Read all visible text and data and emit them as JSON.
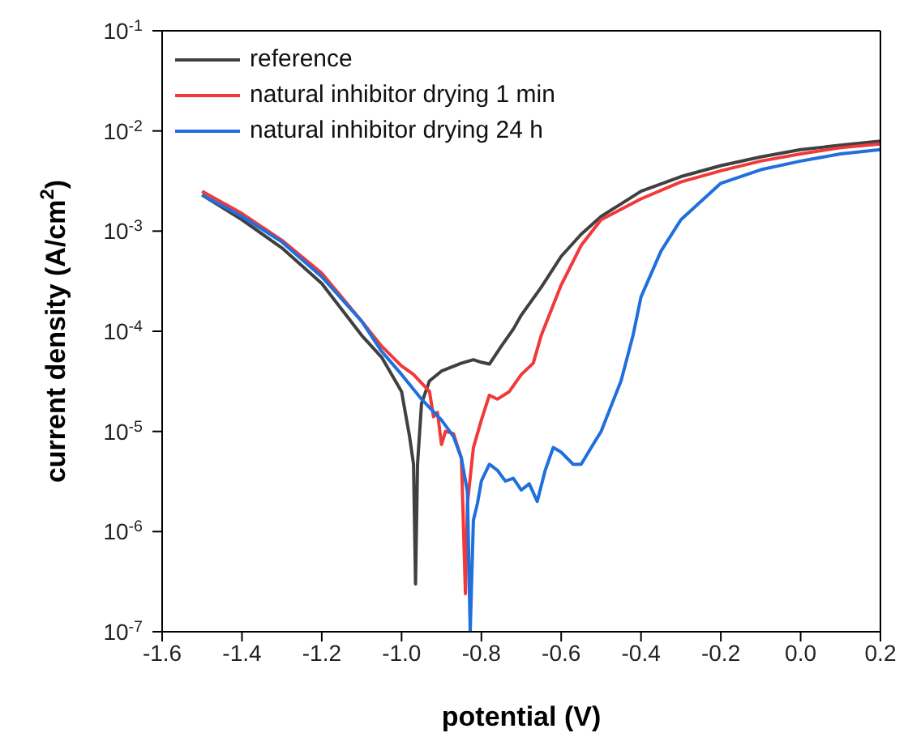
{
  "chart_data": {
    "type": "line",
    "xlabel": "potential (V)",
    "ylabel": "current density (A/cm$^{2}$)",
    "log": "y",
    "xlim": [
      -1.6,
      0.2
    ],
    "xticks": [
      -1.6,
      -1.4,
      -1.2,
      {
        "value": -1.0,
        "label": "-1.0"
      },
      -0.8,
      -0.6,
      -0.4,
      -0.2,
      {
        "value": 0.0,
        "label": "0.0"
      },
      0.2
    ],
    "ylim": [
      1e-07,
      0.1
    ],
    "yticks": [
      {
        "value": 1e-07,
        "label": "10$^{-7}$"
      },
      {
        "value": 1e-06,
        "label": "10$^{-6}$"
      },
      {
        "value": 1e-05,
        "label": "10$^{-5}$"
      },
      {
        "value": 0.0001,
        "label": "10$^{-4}$"
      },
      {
        "value": 0.001,
        "label": "10$^{-3}$"
      },
      {
        "value": 0.01,
        "label": "10$^{-2}$"
      },
      {
        "value": 0.1,
        "label": "10$^{-1}$"
      }
    ],
    "grid": false,
    "legend": "top left",
    "marker": "none",
    "line_style": "solid",
    "series": [
      {
        "name": "reference",
        "color": "#404040",
        "x": [
          -1.5,
          -1.4,
          -1.3,
          -1.2,
          -1.1,
          -1.05,
          -1.0,
          -0.98,
          -0.97,
          -0.965,
          -0.96,
          -0.95,
          -0.93,
          -0.9,
          -0.85,
          -0.82,
          -0.8,
          -0.78,
          -0.75,
          -0.72,
          -0.7,
          -0.65,
          -0.6,
          -0.55,
          -0.5,
          -0.4,
          -0.3,
          -0.2,
          -0.1,
          0.0,
          0.1,
          0.2
        ],
        "values": [
          0.0023,
          0.0013,
          0.00068,
          0.0003,
          9.1e-05,
          5.5e-05,
          2.5e-05,
          8.9e-06,
          4.7e-06,
          3e-07,
          4.7e-06,
          1.9e-05,
          3.2e-05,
          4e-05,
          4.8e-05,
          5.2e-05,
          4.9e-05,
          4.7e-05,
          7.1e-05,
          0.000105,
          0.000145,
          0.000275,
          0.00056,
          0.00093,
          0.0014,
          0.0025,
          0.0035,
          0.0045,
          0.0055,
          0.0065,
          0.0072,
          0.0079
        ]
      },
      {
        "name": "natural inhibitor drying 1 min",
        "color": "#f03a3a",
        "x": [
          -1.5,
          -1.4,
          -1.3,
          -1.2,
          -1.1,
          -1.05,
          -1.0,
          -0.97,
          -0.93,
          -0.92,
          -0.91,
          -0.9,
          -0.89,
          -0.87,
          -0.85,
          -0.84,
          -0.835,
          -0.82,
          -0.8,
          -0.78,
          -0.76,
          -0.73,
          -0.7,
          -0.67,
          -0.65,
          -0.6,
          -0.55,
          -0.5,
          -0.4,
          -0.3,
          -0.2,
          -0.1,
          0.0,
          0.1,
          0.2
        ],
        "values": [
          0.0025,
          0.0015,
          0.00081,
          0.00038,
          0.000126,
          7.1e-05,
          4.5e-05,
          3.7e-05,
          2.5e-05,
          1.4e-05,
          1.55e-05,
          7.4e-06,
          1e-05,
          9.5e-06,
          5.4e-06,
          2.4e-07,
          1.9e-06,
          6.9e-06,
          1.3e-05,
          2.3e-05,
          2.1e-05,
          2.5e-05,
          3.7e-05,
          4.8e-05,
          9.1e-05,
          0.00029,
          0.00072,
          0.0013,
          0.0021,
          0.0031,
          0.004,
          0.005,
          0.0059,
          0.0068,
          0.0074
        ]
      },
      {
        "name": "natural inhibitor drying 24 h",
        "color": "#1f6fdd",
        "x": [
          -1.5,
          -1.4,
          -1.3,
          -1.2,
          -1.1,
          -1.05,
          -1.0,
          -0.95,
          -0.9,
          -0.87,
          -0.85,
          -0.835,
          -0.828,
          -0.82,
          -0.81,
          -0.8,
          -0.78,
          -0.76,
          -0.74,
          -0.72,
          -0.7,
          -0.68,
          -0.66,
          -0.64,
          -0.62,
          -0.6,
          -0.57,
          -0.55,
          -0.52,
          -0.5,
          -0.45,
          -0.42,
          -0.4,
          -0.35,
          -0.3,
          -0.2,
          -0.1,
          0.0,
          0.1,
          0.2
        ],
        "values": [
          0.0023,
          0.0014,
          0.00078,
          0.00035,
          0.000126,
          6.3e-05,
          3.7e-05,
          2.1e-05,
          1.3e-05,
          8.9e-06,
          5.4e-06,
          2.5e-06,
          1e-07,
          1.3e-06,
          1.9e-06,
          3.2e-06,
          4.7e-06,
          4.1e-06,
          3.2e-06,
          3.4e-06,
          2.6e-06,
          3e-06,
          2e-06,
          4.1e-06,
          6.9e-06,
          6.2e-06,
          4.7e-06,
          4.7e-06,
          7.4e-06,
          1e-05,
          3.2e-05,
          9.1e-05,
          0.00022,
          0.00063,
          0.0013,
          0.003,
          0.0041,
          0.005,
          0.0059,
          0.0065
        ]
      }
    ]
  }
}
